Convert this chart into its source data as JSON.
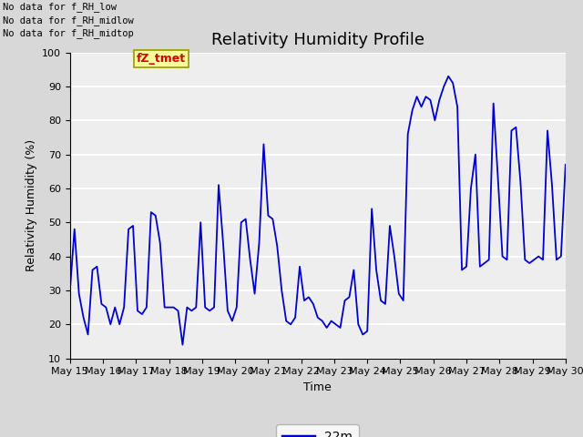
{
  "title": "Relativity Humidity Profile",
  "ylabel": "Relativity Humidity (%)",
  "xlabel": "Time",
  "ylim": [
    10,
    100
  ],
  "yticks": [
    10,
    20,
    30,
    40,
    50,
    60,
    70,
    80,
    90,
    100
  ],
  "legend_label": "22m",
  "line_color": "#0000cc",
  "annotations": [
    "No data for f_RH_low",
    "No data for f_RH_midlow",
    "No data for f_RH_midtop"
  ],
  "fz_tmet_label": "fZ_tmet",
  "fz_tmet_color": "#cc0000",
  "fz_tmet_bg": "#ffff99",
  "fz_tmet_edge": "#999900",
  "fig_facecolor": "#d8d8d8",
  "ax_facecolor": "#eeeeee",
  "grid_color": "#ffffff",
  "x_start_day": 15,
  "x_end_day": 30,
  "x_tick_days": [
    15,
    16,
    17,
    18,
    19,
    20,
    21,
    22,
    23,
    24,
    25,
    26,
    27,
    28,
    29,
    30
  ],
  "rh_values": [
    30,
    48,
    29,
    22,
    17,
    36,
    37,
    26,
    25,
    20,
    25,
    20,
    25,
    48,
    49,
    24,
    23,
    25,
    53,
    52,
    44,
    25,
    25,
    25,
    24,
    14,
    25,
    24,
    25,
    50,
    25,
    24,
    25,
    61,
    44,
    24,
    21,
    25,
    50,
    51,
    39,
    29,
    44,
    73,
    52,
    51,
    43,
    30,
    21,
    20,
    22,
    37,
    27,
    28,
    26,
    22,
    21,
    19,
    21,
    20,
    19,
    27,
    28,
    36,
    20,
    17,
    18,
    54,
    36,
    27,
    26,
    49,
    40,
    29,
    27,
    76,
    83,
    87,
    84,
    87,
    86,
    80,
    86,
    90,
    93,
    91,
    84,
    36,
    37,
    60,
    70,
    37,
    38,
    39,
    85,
    63,
    40,
    39,
    77,
    78,
    62,
    39,
    38,
    39,
    40,
    39,
    77,
    61,
    39,
    40,
    67
  ],
  "anno_fontsize": 7.5,
  "title_fontsize": 13,
  "tick_fontsize": 8,
  "xlabel_fontsize": 9,
  "ylabel_fontsize": 9,
  "legend_fontsize": 10
}
